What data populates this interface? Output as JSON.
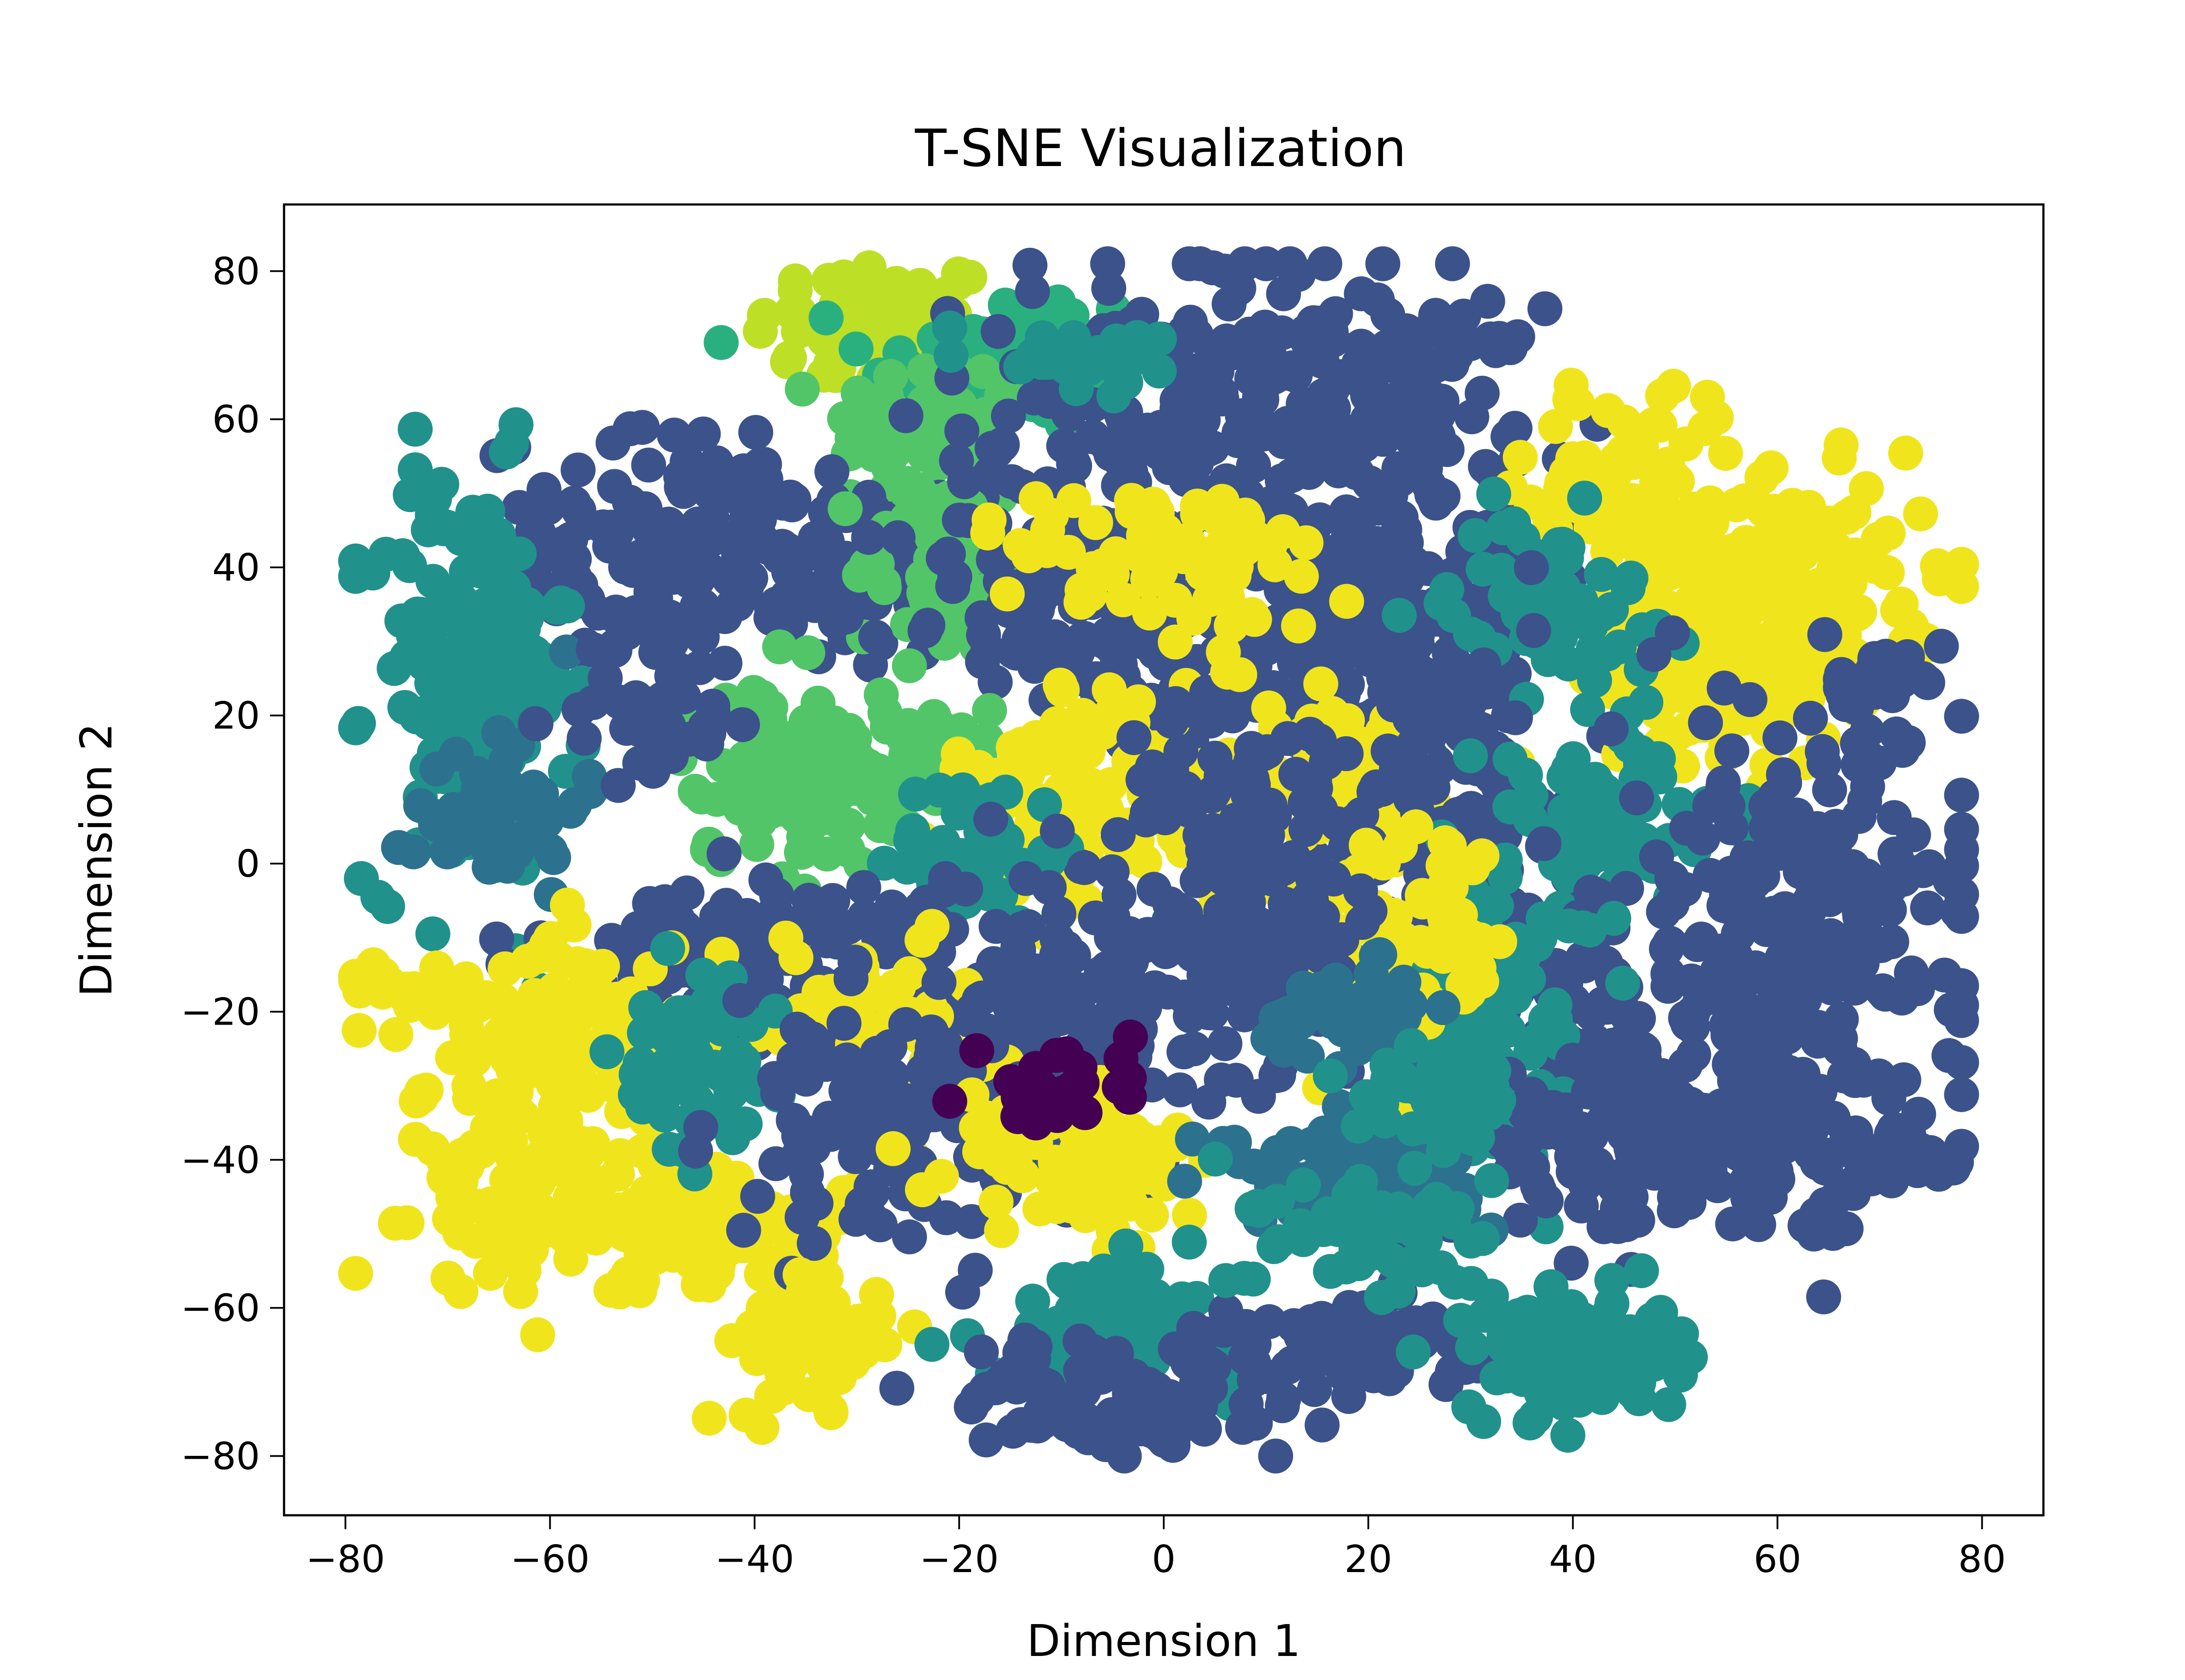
{
  "chart_data": {
    "type": "scatter",
    "title": "T-SNE Visualization",
    "xlabel": "Dimension 1",
    "ylabel": "Dimension 2",
    "xlim": [
      -86,
      86
    ],
    "ylim": [
      -88,
      89
    ],
    "xticks": [
      -80,
      -60,
      -40,
      -20,
      0,
      20,
      40,
      60,
      80
    ],
    "yticks": [
      -80,
      -60,
      -40,
      -20,
      0,
      20,
      40,
      60,
      80
    ],
    "xtick_labels": [
      "−80",
      "−60",
      "−40",
      "−20",
      "0",
      "20",
      "40",
      "60",
      "80"
    ],
    "ytick_labels": [
      "−80",
      "−60",
      "−40",
      "−20",
      "0",
      "20",
      "40",
      "60",
      "80"
    ],
    "grid": false,
    "legend": "none",
    "colormap": "viridis",
    "clusters": [
      {
        "cx": -28,
        "cy": 72,
        "sx": 6,
        "sy": 5,
        "n": 70,
        "color": "#bddf26"
      },
      {
        "cx": -15,
        "cy": 68,
        "sx": 7,
        "sy": 5,
        "n": 80,
        "color": "#2ab07f"
      },
      {
        "cx": -23,
        "cy": 58,
        "sx": 5,
        "sy": 6,
        "n": 60,
        "color": "#52c569"
      },
      {
        "cx": 5,
        "cy": 60,
        "sx": 12,
        "sy": 12,
        "n": 180,
        "color": "#3b528b"
      },
      {
        "cx": 20,
        "cy": 65,
        "sx": 8,
        "sy": 5,
        "n": 70,
        "color": "#3b528b"
      },
      {
        "cx": -47,
        "cy": 42,
        "sx": 10,
        "sy": 8,
        "n": 150,
        "color": "#3b528b"
      },
      {
        "cx": -30,
        "cy": 40,
        "sx": 6,
        "sy": 6,
        "n": 70,
        "color": "#3b528b"
      },
      {
        "cx": -68,
        "cy": 25,
        "sx": 5,
        "sy": 14,
        "n": 180,
        "color": "#21918c"
      },
      {
        "cx": -65,
        "cy": 8,
        "sx": 4,
        "sy": 6,
        "n": 50,
        "color": "#2c728e"
      },
      {
        "cx": -22,
        "cy": 40,
        "sx": 4,
        "sy": 6,
        "n": 60,
        "color": "#52c569"
      },
      {
        "cx": -10,
        "cy": 35,
        "sx": 8,
        "sy": 8,
        "n": 100,
        "color": "#3b528b"
      },
      {
        "cx": 12,
        "cy": 30,
        "sx": 10,
        "sy": 10,
        "n": 160,
        "color": "#3b528b"
      },
      {
        "cx": 27,
        "cy": 35,
        "sx": 7,
        "sy": 14,
        "n": 150,
        "color": "#3b528b"
      },
      {
        "cx": 46,
        "cy": 50,
        "sx": 5,
        "sy": 8,
        "n": 100,
        "color": "#f0e51c"
      },
      {
        "cx": 62,
        "cy": 38,
        "sx": 7,
        "sy": 7,
        "n": 130,
        "color": "#f0e51c"
      },
      {
        "cx": 55,
        "cy": 25,
        "sx": 6,
        "sy": 6,
        "n": 90,
        "color": "#f0e51c"
      },
      {
        "cx": 38,
        "cy": 35,
        "sx": 5,
        "sy": 6,
        "n": 70,
        "color": "#21918c"
      },
      {
        "cx": -38,
        "cy": 12,
        "sx": 5,
        "sy": 6,
        "n": 70,
        "color": "#52c569"
      },
      {
        "cx": -28,
        "cy": 12,
        "sx": 6,
        "sy": 6,
        "n": 90,
        "color": "#52c569"
      },
      {
        "cx": -5,
        "cy": 10,
        "sx": 8,
        "sy": 8,
        "n": 110,
        "color": "#f0e51c"
      },
      {
        "cx": 18,
        "cy": 10,
        "sx": 6,
        "sy": 6,
        "n": 80,
        "color": "#f0e51c"
      },
      {
        "cx": 8,
        "cy": 10,
        "sx": 6,
        "sy": 6,
        "n": 60,
        "color": "#3b528b"
      },
      {
        "cx": -18,
        "cy": 2,
        "sx": 4,
        "sy": 5,
        "n": 50,
        "color": "#21918c"
      },
      {
        "cx": 28,
        "cy": 5,
        "sx": 6,
        "sy": 12,
        "n": 110,
        "color": "#3b528b"
      },
      {
        "cx": 43,
        "cy": 5,
        "sx": 6,
        "sy": 6,
        "n": 80,
        "color": "#21918c"
      },
      {
        "cx": 62,
        "cy": -10,
        "sx": 9,
        "sy": 16,
        "n": 260,
        "color": "#3b528b"
      },
      {
        "cx": 42,
        "cy": -20,
        "sx": 4,
        "sy": 8,
        "n": 60,
        "color": "#3b528b"
      },
      {
        "cx": 33,
        "cy": -18,
        "sx": 5,
        "sy": 10,
        "n": 80,
        "color": "#21918c"
      },
      {
        "cx": 48,
        "cy": -38,
        "sx": 10,
        "sy": 6,
        "n": 170,
        "color": "#3b528b"
      },
      {
        "cx": 22,
        "cy": -12,
        "sx": 6,
        "sy": 8,
        "n": 90,
        "color": "#f0e51c"
      },
      {
        "cx": 10,
        "cy": -8,
        "sx": 6,
        "sy": 6,
        "n": 70,
        "color": "#3b528b"
      },
      {
        "cx": -8,
        "cy": -18,
        "sx": 10,
        "sy": 8,
        "n": 150,
        "color": "#3b528b"
      },
      {
        "cx": -40,
        "cy": -12,
        "sx": 10,
        "sy": 5,
        "n": 120,
        "color": "#3b528b"
      },
      {
        "cx": -28,
        "cy": -20,
        "sx": 5,
        "sy": 6,
        "n": 60,
        "color": "#f0e51c"
      },
      {
        "cx": -58,
        "cy": -25,
        "sx": 7,
        "sy": 8,
        "n": 120,
        "color": "#f0e51c"
      },
      {
        "cx": -73,
        "cy": -17,
        "sx": 4,
        "sy": 2,
        "n": 25,
        "color": "#f0e51c"
      },
      {
        "cx": -60,
        "cy": -45,
        "sx": 6,
        "sy": 7,
        "n": 100,
        "color": "#f0e51c"
      },
      {
        "cx": -44,
        "cy": -50,
        "sx": 7,
        "sy": 4,
        "n": 90,
        "color": "#f0e51c"
      },
      {
        "cx": -46,
        "cy": -28,
        "sx": 4,
        "sy": 6,
        "n": 60,
        "color": "#21918c"
      },
      {
        "cx": -25,
        "cy": -35,
        "sx": 9,
        "sy": 8,
        "n": 140,
        "color": "#3b528b"
      },
      {
        "cx": -8,
        "cy": -40,
        "sx": 6,
        "sy": 6,
        "n": 80,
        "color": "#f0e51c"
      },
      {
        "cx": -34,
        "cy": -65,
        "sx": 4,
        "sy": 5,
        "n": 60,
        "color": "#f0e51c"
      },
      {
        "cx": 18,
        "cy": -42,
        "sx": 6,
        "sy": 3,
        "n": 120,
        "color": "#2c728e"
      },
      {
        "cx": 18,
        "cy": -20,
        "sx": 4,
        "sy": 3,
        "n": 50,
        "color": "#2c728e"
      },
      {
        "cx": 28,
        "cy": -30,
        "sx": 4,
        "sy": 4,
        "n": 50,
        "color": "#21918c"
      },
      {
        "cx": -5,
        "cy": -62,
        "sx": 6,
        "sy": 4,
        "n": 80,
        "color": "#21918c"
      },
      {
        "cx": -5,
        "cy": -72,
        "sx": 8,
        "sy": 4,
        "n": 90,
        "color": "#3b528b"
      },
      {
        "cx": 18,
        "cy": -65,
        "sx": 6,
        "sy": 4,
        "n": 80,
        "color": "#3b528b"
      },
      {
        "cx": 40,
        "cy": -66,
        "sx": 5,
        "sy": 4,
        "n": 120,
        "color": "#21918c"
      },
      {
        "cx": 20,
        "cy": -50,
        "sx": 6,
        "sy": 5,
        "n": 60,
        "color": "#21918c"
      },
      {
        "cx": 72,
        "cy": -38,
        "sx": 3,
        "sy": 4,
        "n": 30,
        "color": "#3b528b"
      },
      {
        "cx": 70,
        "cy": 25,
        "sx": 3,
        "sy": 2,
        "n": 30,
        "color": "#3b528b"
      },
      {
        "cx": -8,
        "cy": 68,
        "sx": 4,
        "sy": 2,
        "n": 25,
        "color": "#21918c"
      },
      {
        "cx": -10,
        "cy": -30,
        "sx": 4,
        "sy": 4,
        "n": 30,
        "color": "#440154"
      },
      {
        "cx": 2,
        "cy": 40,
        "sx": 8,
        "sy": 6,
        "n": 80,
        "color": "#f0e51c"
      },
      {
        "cx": -50,
        "cy": 20,
        "sx": 4,
        "sy": 5,
        "n": 40,
        "color": "#3b528b"
      }
    ]
  }
}
